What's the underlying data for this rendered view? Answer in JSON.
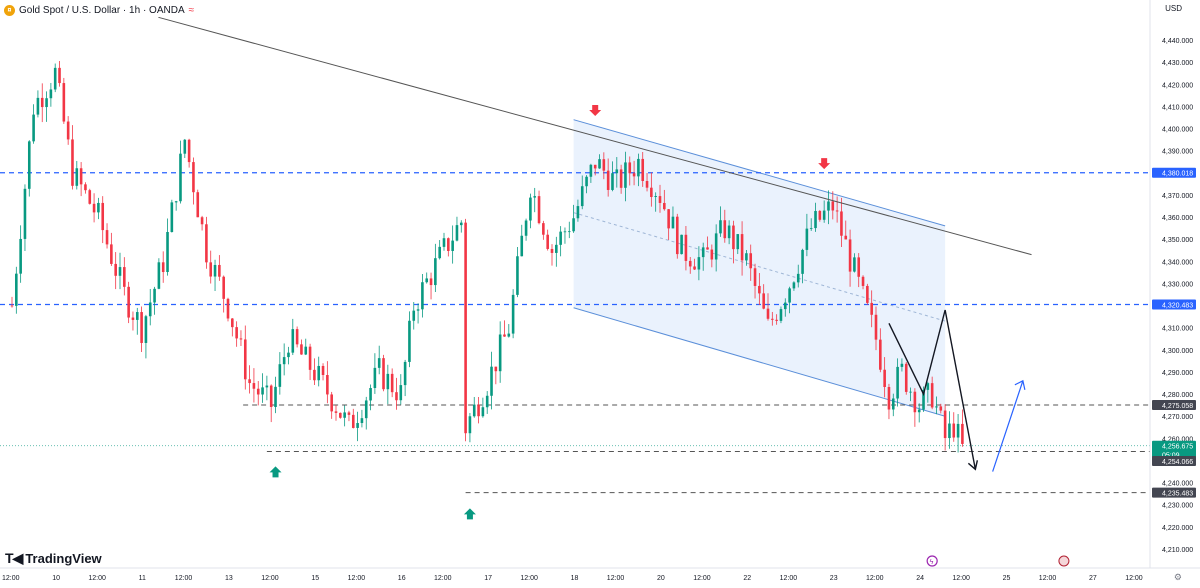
{
  "header": {
    "title": "Gold Spot / U.S. Dollar · 1h · OANDA",
    "currency": "USD",
    "brand": "TradingView",
    "logo_icon": "gold-coin-icon",
    "wave_icon": "wave-icon"
  },
  "colors": {
    "up": "#089981",
    "down": "#f23645",
    "blue_line": "#2962ff",
    "channel_fill": "#e3eefc",
    "channel_line": "#5b8fd9",
    "trend_line": "#555555",
    "dashed_gray": "#555555",
    "price_tag": "#2962ff",
    "gray_tag": "#434651",
    "arrow_up": "#089981",
    "arrow_down": "#f23645",
    "projection_blue": "#2962ff"
  },
  "chart_data": {
    "type": "candlestick",
    "symbol": "Gold Spot / U.S. Dollar",
    "interval": "1h",
    "source": "OANDA",
    "ylim": [
      4205,
      4445
    ],
    "y_ticks": [
      "4,440.000",
      "4,430.000",
      "4,420.000",
      "4,410.000",
      "4,400.000",
      "4,390.000",
      "4,380.000",
      "4,370.000",
      "4,360.000",
      "4,350.000",
      "4,340.000",
      "4,330.000",
      "4,320.000",
      "4,310.000",
      "4,300.000",
      "4,290.000",
      "4,280.000",
      "4,270.000",
      "4,260.000",
      "4,250.000",
      "4,240.000",
      "4,230.000",
      "4,220.000",
      "4,210.000"
    ],
    "x_ticks": [
      {
        "label": "12:00",
        "t": 0
      },
      {
        "label": "10",
        "t": 1
      },
      {
        "label": "12:00",
        "t": 2
      },
      {
        "label": "11",
        "t": 3
      },
      {
        "label": "12:00",
        "t": 4
      },
      {
        "label": "13",
        "t": 5
      },
      {
        "label": "12:00",
        "t": 6
      },
      {
        "label": "15",
        "t": 7
      },
      {
        "label": "12:00",
        "t": 8
      },
      {
        "label": "16",
        "t": 9
      },
      {
        "label": "12:00",
        "t": 10
      },
      {
        "label": "17",
        "t": 11
      },
      {
        "label": "12:00",
        "t": 12
      },
      {
        "label": "18",
        "t": 13
      },
      {
        "label": "12:00",
        "t": 14
      },
      {
        "label": "20",
        "t": 15
      },
      {
        "label": "12:00",
        "t": 16
      },
      {
        "label": "22",
        "t": 17
      },
      {
        "label": "12:00",
        "t": 18
      },
      {
        "label": "23",
        "t": 19
      },
      {
        "label": "12:00",
        "t": 20
      },
      {
        "label": "24",
        "t": 21
      },
      {
        "label": "12:00",
        "t": 22
      },
      {
        "label": "25",
        "t": 23
      },
      {
        "label": "12:00",
        "t": 24
      },
      {
        "label": "27",
        "t": 25
      },
      {
        "label": "12:00",
        "t": 26
      }
    ],
    "price_levels": [
      {
        "price": 4380.018,
        "label": "4,380.018",
        "style": "blue-dashed"
      },
      {
        "price": 4320.483,
        "label": "4,320.483",
        "style": "blue-dashed"
      },
      {
        "price": 4275.058,
        "label": "4,275.058",
        "style": "gray-dashed"
      },
      {
        "price": 4254.066,
        "label": "4,254.066",
        "style": "gray-dashed"
      },
      {
        "price": 4235.483,
        "label": "4,235.483",
        "style": "gray-dashed"
      }
    ],
    "current_price": {
      "price": 4256.675,
      "label": "4,256.675",
      "countdown": "05:09"
    },
    "anchors": [
      {
        "t": 0,
        "price": 4320
      },
      {
        "t": 0.5,
        "price": 4410
      },
      {
        "t": 1,
        "price": 4425
      },
      {
        "t": 1.4,
        "price": 4380
      },
      {
        "t": 2,
        "price": 4360
      },
      {
        "t": 2.6,
        "price": 4325
      },
      {
        "t": 3,
        "price": 4310
      },
      {
        "t": 3.5,
        "price": 4340
      },
      {
        "t": 4,
        "price": 4395
      },
      {
        "t": 4.5,
        "price": 4345
      },
      {
        "t": 5,
        "price": 4320
      },
      {
        "t": 5.5,
        "price": 4285
      },
      {
        "t": 6,
        "price": 4275
      },
      {
        "t": 6.4,
        "price": 4305
      },
      {
        "t": 7,
        "price": 4290
      },
      {
        "t": 7.5,
        "price": 4275
      },
      {
        "t": 7.8,
        "price": 4265
      },
      {
        "t": 8.5,
        "price": 4290
      },
      {
        "t": 9,
        "price": 4280
      },
      {
        "t": 9.3,
        "price": 4320
      },
      {
        "t": 10,
        "price": 4345
      },
      {
        "t": 10.4,
        "price": 4358
      },
      {
        "t": 10.5,
        "price": 4265
      },
      {
        "t": 11,
        "price": 4285
      },
      {
        "t": 11.5,
        "price": 4310
      },
      {
        "t": 12,
        "price": 4375
      },
      {
        "t": 12.5,
        "price": 4345
      },
      {
        "t": 13,
        "price": 4360
      },
      {
        "t": 13.5,
        "price": 4385
      },
      {
        "t": 14,
        "price": 4375
      },
      {
        "t": 14.5,
        "price": 4385
      },
      {
        "t": 15,
        "price": 4370
      },
      {
        "t": 15.5,
        "price": 4345
      },
      {
        "t": 16,
        "price": 4340
      },
      {
        "t": 16.5,
        "price": 4355
      },
      {
        "t": 17,
        "price": 4340
      },
      {
        "t": 17.5,
        "price": 4310
      },
      {
        "t": 18,
        "price": 4330
      },
      {
        "t": 18.5,
        "price": 4355
      },
      {
        "t": 19,
        "price": 4365
      },
      {
        "t": 19.5,
        "price": 4335
      },
      {
        "t": 20,
        "price": 4305
      },
      {
        "t": 20.3,
        "price": 4280
      },
      {
        "t": 20.6,
        "price": 4290
      },
      {
        "t": 21,
        "price": 4275
      },
      {
        "t": 21.3,
        "price": 4280
      },
      {
        "t": 21.6,
        "price": 4260
      },
      {
        "t": 21.8,
        "price": 4266
      },
      {
        "t": 22,
        "price": 4255
      }
    ],
    "trend_line": {
      "from": {
        "t": 2,
        "price": 4448
      },
      "to": {
        "t": 23.6,
        "price": 4343
      }
    },
    "channel": {
      "upper": {
        "from": {
          "t": 13,
          "price": 4404
        },
        "to": {
          "t": 21.6,
          "price": 4356
        }
      },
      "lower": {
        "from": {
          "t": 13,
          "price": 4319
        },
        "to": {
          "t": 21.6,
          "price": 4270
        }
      },
      "mid": {
        "from": {
          "t": 13,
          "price": 4362
        },
        "to": {
          "t": 21.6,
          "price": 4313
        }
      }
    },
    "markers": [
      {
        "type": "down",
        "t": 13.5,
        "price": 4407
      },
      {
        "type": "down",
        "t": 18.8,
        "price": 4383
      },
      {
        "type": "up",
        "t": 6.1,
        "price": 4246
      },
      {
        "type": "up",
        "t": 10.6,
        "price": 4227
      }
    ],
    "zigzag": [
      {
        "t": 20.3,
        "price": 4312
      },
      {
        "t": 21.1,
        "price": 4280
      },
      {
        "t": 21.6,
        "price": 4318
      },
      {
        "t": 22.3,
        "price": 4246
      }
    ],
    "projection": {
      "from": {
        "t": 22.7,
        "price": 4245
      },
      "to": {
        "t": 23.4,
        "price": 4286
      }
    }
  }
}
